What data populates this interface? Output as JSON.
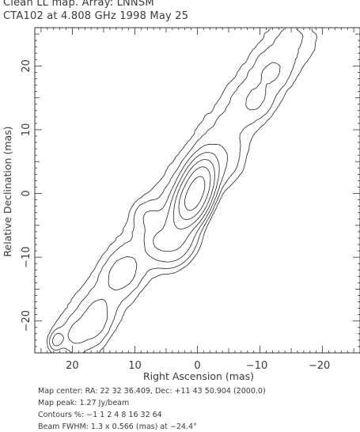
{
  "header": {
    "title": "Clean LL map.  Array:  LNNSM",
    "subtitle": "CTA102 at 4.808 GHz 1998 May 25"
  },
  "chart_data": {
    "type": "contour",
    "xlabel": "Right Ascension  (mas)",
    "ylabel": "Relative Declination  (mas)",
    "xlim": [
      26,
      -26
    ],
    "ylim": [
      -25,
      26
    ],
    "xticks": [
      20,
      10,
      0,
      -10,
      -20
    ],
    "xtick_labels": [
      "20",
      "10",
      "0",
      "−10",
      "−20"
    ],
    "yticks": [
      20,
      10,
      0,
      -10,
      -20
    ],
    "ytick_labels": [
      "20",
      "10",
      "0",
      "−10",
      "−20"
    ],
    "contour_levels_percent": [
      -1,
      1,
      2,
      4,
      8,
      16,
      32,
      64
    ],
    "map_peak_jy_per_beam": 1.27,
    "components": [
      {
        "x": 0.2,
        "y": 0.3,
        "sx": 1.2,
        "sy": 2.6,
        "pa": -20,
        "amp": 100
      },
      {
        "x": 1.5,
        "y": -1.4,
        "sx": 1.2,
        "sy": 1.5,
        "pa": 0,
        "amp": 14
      },
      {
        "x": 2.8,
        "y": -3.5,
        "sx": 1.3,
        "sy": 2.2,
        "pa": -30,
        "amp": 10
      },
      {
        "x": 3.3,
        "y": -7.8,
        "sx": 1.7,
        "sy": 2.4,
        "pa": -35,
        "amp": 8
      },
      {
        "x": 6.5,
        "y": -7.5,
        "sx": 1.2,
        "sy": 1.6,
        "pa": 0,
        "amp": 5
      },
      {
        "x": 12.0,
        "y": -12.5,
        "sx": 1.6,
        "sy": 2.0,
        "pa": -35,
        "amp": 4
      },
      {
        "x": 16.3,
        "y": -20.0,
        "sx": 1.4,
        "sy": 2.2,
        "pa": -20,
        "amp": 4.5
      },
      {
        "x": 19.5,
        "y": -22.0,
        "sx": 1.0,
        "sy": 1.5,
        "pa": -20,
        "amp": 3
      },
      {
        "x": 8.0,
        "y": -3.5,
        "sx": 1.5,
        "sy": 1.5,
        "pa": 0,
        "amp": 2.5
      },
      {
        "x": -4.0,
        "y": 4.5,
        "sx": 2.0,
        "sy": 2.5,
        "pa": -40,
        "amp": 2.5
      },
      {
        "x": -9.5,
        "y": 14.5,
        "sx": 1.6,
        "sy": 1.8,
        "pa": -40,
        "amp": 2.5
      },
      {
        "x": -12.0,
        "y": 19.0,
        "sx": 1.6,
        "sy": 1.8,
        "pa": -40,
        "amp": 2.2
      },
      {
        "x": 22.5,
        "y": -23.0,
        "sx": 0.6,
        "sy": 0.9,
        "pa": -20,
        "amp": 6
      }
    ],
    "ridge": {
      "x0": 19,
      "y0": -22,
      "x1": -15,
      "y1": 24,
      "width_mas": 2.8,
      "amp": 2.6
    }
  },
  "footer": {
    "map_center": "Map center:  RA: 22 32 36.409,  Dec: +11 43 50.904 (2000.0)",
    "map_peak": "Map peak: 1.27 Jy/beam",
    "contours": "Contours %: −1 1 2 4 8 16 32 64",
    "beam": "Beam FWHM: 1.3 x 0.566 (mas) at −24.4°"
  }
}
